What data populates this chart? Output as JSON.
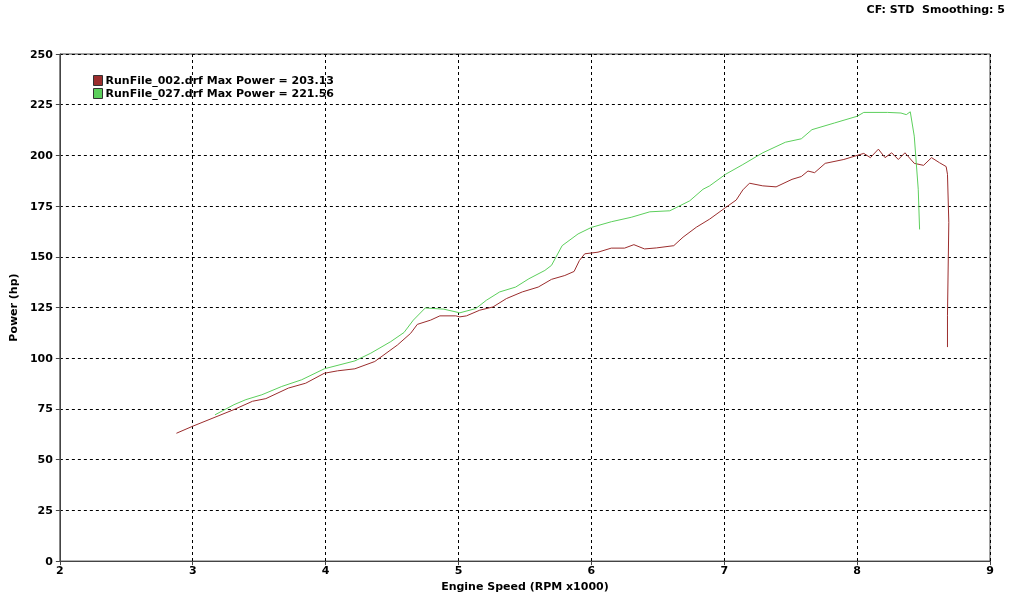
{
  "chart_data": {
    "type": "line",
    "xlabel": "Engine Speed (RPM x1000)",
    "ylabel": "Power (hp)",
    "annotations": [
      "CF: STD  Smoothing: 5"
    ],
    "xlim": [
      2,
      9
    ],
    "xticks": [
      2,
      3,
      4,
      5,
      6,
      7,
      8,
      9
    ],
    "ylim": [
      0,
      250
    ],
    "yticks": [
      0,
      25,
      50,
      75,
      100,
      125,
      150,
      175,
      200,
      225,
      250
    ],
    "grid": true,
    "legend": "top left",
    "series": [
      {
        "name": "RunFile_002.drf Max Power = 203.13",
        "color": "#9b2d2d",
        "x": [
          2.88,
          3.0,
          3.31,
          3.45,
          3.55,
          3.72,
          3.85,
          3.99,
          4.09,
          4.22,
          4.37,
          4.54,
          4.64,
          4.69,
          4.79,
          4.86,
          4.98,
          5.01,
          5.06,
          5.16,
          5.26,
          5.36,
          5.48,
          5.6,
          5.7,
          5.8,
          5.87,
          5.91,
          5.95,
          6.05,
          6.15,
          6.25,
          6.32,
          6.4,
          6.49,
          6.62,
          6.69,
          6.79,
          6.89,
          7.01,
          7.09,
          7.14,
          7.19,
          7.29,
          7.39,
          7.51,
          7.58,
          7.63,
          7.68,
          7.76,
          7.9,
          8.0,
          8.05,
          8.1,
          8.16,
          8.21,
          8.26,
          8.31,
          8.36,
          8.43,
          8.5,
          8.56,
          8.62,
          8.67,
          8.68,
          8.69,
          8.68,
          8.68
        ],
        "values": [
          63.1,
          66.5,
          74.7,
          78.8,
          80.1,
          85.3,
          87.7,
          92.6,
          93.8,
          94.8,
          98.4,
          106.5,
          112.3,
          116.7,
          118.8,
          120.9,
          120.9,
          120.4,
          120.9,
          123.7,
          125.3,
          129.4,
          132.7,
          135.1,
          138.9,
          140.8,
          142.8,
          148.2,
          151.5,
          152.3,
          154.3,
          154.3,
          156.0,
          153.9,
          154.4,
          155.5,
          159.7,
          164.6,
          168.6,
          174.3,
          178.0,
          183.0,
          186.3,
          185.0,
          184.5,
          188.2,
          189.6,
          192.3,
          191.5,
          196.1,
          198.0,
          200.0,
          201.0,
          198.9,
          203.1,
          198.9,
          201.3,
          198.0,
          201.3,
          196.1,
          195.1,
          198.9,
          196.4,
          194.5,
          190.7,
          167.0,
          121.2,
          105.7
        ]
      },
      {
        "name": "RunFile_027.drf Max Power = 221.56",
        "color": "#5ccf5c",
        "x": [
          3.17,
          3.31,
          3.4,
          3.52,
          3.67,
          3.82,
          3.99,
          4.22,
          4.34,
          4.49,
          4.59,
          4.66,
          4.75,
          4.89,
          5.01,
          5.13,
          5.21,
          5.31,
          5.43,
          5.53,
          5.65,
          5.7,
          5.78,
          5.9,
          6.0,
          6.15,
          6.3,
          6.44,
          6.59,
          6.74,
          6.84,
          6.89,
          7.01,
          7.14,
          7.29,
          7.46,
          7.58,
          7.66,
          7.83,
          8.0,
          8.05,
          8.23,
          8.33,
          8.37,
          8.4,
          8.43,
          8.46,
          8.47
        ],
        "values": [
          72.2,
          77.1,
          79.6,
          82.0,
          86.1,
          89.4,
          94.8,
          98.7,
          102.5,
          108.2,
          112.7,
          118.8,
          124.8,
          124.2,
          122.4,
          124.5,
          128.6,
          132.7,
          135.1,
          139.2,
          143.3,
          145.8,
          155.5,
          161.3,
          164.5,
          167.3,
          169.5,
          172.2,
          172.7,
          177.6,
          183.3,
          185.0,
          190.7,
          195.5,
          201.3,
          206.5,
          208.2,
          212.7,
          216.0,
          219.3,
          221.2,
          221.2,
          220.9,
          220.1,
          221.5,
          209.5,
          183.3,
          163.7
        ]
      }
    ]
  }
}
